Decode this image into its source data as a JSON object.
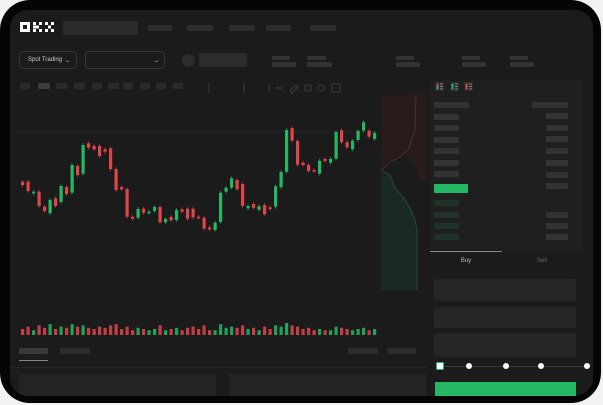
{
  "brand": {
    "logo_text": "OKX"
  },
  "header": {
    "product_selector": "Spot Trading",
    "pair_selector": ""
  },
  "trade_panel": {
    "tabs": [
      {
        "label": "Buy",
        "active": true
      },
      {
        "label": "Sell",
        "active": false
      }
    ],
    "leverage_slider_level": 0
  },
  "colors": {
    "up": "#25b864",
    "down": "#e0454c",
    "background": "#1b1b1b",
    "accent": "#25b864"
  },
  "icons": [
    "chevron-down-icon",
    "candle-type-icon",
    "indicator-icon",
    "line-tool-icon",
    "ruler-icon",
    "camera-icon",
    "settings-icon",
    "fullscreen-icon",
    "orderbook-both-icon",
    "orderbook-bids-icon",
    "orderbook-asks-icon"
  ],
  "chart_data": {
    "type": "candlestick",
    "candles": [
      [
        58.3,
        55
      ],
      [
        58.3,
        49
      ],
      [
        46.7,
        48.3
      ],
      [
        48.3,
        34
      ],
      [
        33.3,
        29
      ],
      [
        26.7,
        40
      ],
      [
        41.7,
        34
      ],
      [
        38,
        54
      ],
      [
        53,
        46
      ],
      [
        47.3,
        75
      ],
      [
        74,
        65
      ],
      [
        66.3,
        95
      ],
      [
        96.7,
        92.3
      ],
      [
        94,
        90.7
      ],
      [
        94,
        84
      ],
      [
        90.7,
        88.3
      ],
      [
        91.7,
        71
      ],
      [
        71,
        50
      ],
      [
        53,
        50.7
      ],
      [
        51,
        23.3
      ],
      [
        23.3,
        21.3
      ],
      [
        22.3,
        31
      ],
      [
        31.3,
        27.3
      ],
      [
        26.7,
        28.3
      ],
      [
        29,
        33
      ],
      [
        33,
        17.7
      ],
      [
        17.7,
        21
      ],
      [
        23,
        19.7
      ],
      [
        20,
        30
      ],
      [
        30.7,
        28.3
      ],
      [
        31.3,
        21.3
      ],
      [
        31.3,
        22.7
      ],
      [
        23.3,
        22.3
      ],
      [
        22.3,
        11.3
      ],
      [
        12.7,
        10.7
      ],
      [
        10,
        17.3
      ],
      [
        18,
        47.3
      ],
      [
        48.3,
        52.3
      ],
      [
        52.3,
        61.7
      ],
      [
        60,
        50.7
      ],
      [
        56,
        34
      ],
      [
        31.7,
        34
      ],
      [
        36,
        32.3
      ],
      [
        30.3,
        33.7
      ],
      [
        35,
        25.7
      ],
      [
        32.7,
        31
      ],
      [
        33.3,
        53.7
      ],
      [
        52.7,
        68
      ],
      [
        68.3,
        110
      ],
      [
        112,
        99.3
      ],
      [
        99,
        75.3
      ],
      [
        77.3,
        75
      ],
      [
        75,
        69
      ],
      [
        70,
        69
      ],
      [
        66.3,
        79.3
      ],
      [
        81,
        79
      ],
      [
        77.3,
        81
      ],
      [
        81.3,
        108
      ],
      [
        109.7,
        97.7
      ],
      [
        97.7,
        92.7
      ],
      [
        90.7,
        99.3
      ],
      [
        100,
        109
      ],
      [
        109.3,
        117.7
      ],
      [
        109.3,
        103.3
      ],
      [
        101,
        107
      ]
    ],
    "candle_format": [
      "open",
      "close"
    ],
    "volume": [
      5,
      7,
      4,
      8,
      6,
      9,
      5,
      7,
      6,
      9,
      7,
      8,
      6,
      5,
      7,
      6,
      8,
      9,
      5,
      7,
      4,
      6,
      5,
      4,
      5,
      8,
      4,
      5,
      6,
      4,
      6,
      7,
      5,
      8,
      4,
      4,
      9,
      6,
      7,
      6,
      8,
      5,
      6,
      4,
      7,
      5,
      8,
      7,
      10,
      8,
      7,
      5,
      6,
      4,
      5,
      4,
      4,
      7,
      6,
      5,
      4,
      5,
      6,
      4,
      5
    ]
  }
}
